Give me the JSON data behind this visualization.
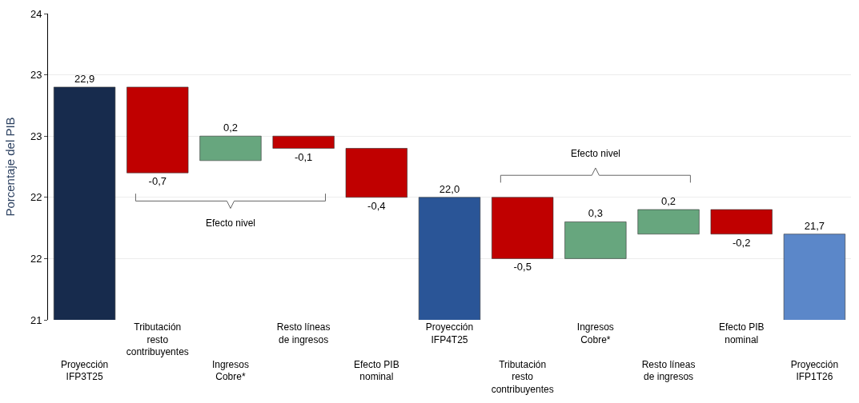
{
  "chart_data": {
    "type": "bar",
    "ylabel": "Porcentaje del PIB",
    "categories": [
      "Proyección IFP3T25",
      "Tributación resto contribuyentes",
      "Ingresos Cobre*",
      "Resto líneas de ingresos",
      "Efecto PIB nominal",
      "Proyección IFP4T25",
      "Tributación resto contribuyentes",
      "Ingresos Cobre*",
      "Resto líneas de ingresos",
      "Efecto PIB nominal",
      "Proyección IFP1T26"
    ],
    "values": [
      22.9,
      -0.7,
      0.2,
      -0.1,
      -0.4,
      22.0,
      -0.5,
      0.3,
      0.2,
      -0.2,
      21.7
    ],
    "base": [
      null,
      22.9,
      22.3,
      22.5,
      22.4,
      null,
      22.0,
      21.5,
      21.7,
      21.9,
      null
    ],
    "colors": [
      "#172b4d",
      "#c00000",
      "#67a67e",
      "#c00000",
      "#c00000",
      "#2a5597",
      "#c00000",
      "#67a67e",
      "#67a67e",
      "#c00000",
      "#5b87c9"
    ],
    "value_labels": [
      "22,9",
      "-0,7",
      "0,2",
      "-0,1",
      "-0,4",
      "22,0",
      "-0,5",
      "0,3",
      "0,2",
      "-0,2",
      "21,7"
    ],
    "ylim": [
      21,
      23.5
    ],
    "yticks": [
      21,
      {
        "value": 21.5,
        "label": "22"
      },
      22,
      {
        "value": 22.5,
        "label": "23"
      },
      23,
      {
        "value": 23.5,
        "label": "24"
      }
    ],
    "grid": "y",
    "legend": false,
    "annotations": [
      "Efecto nivel",
      "Efecto nivel"
    ]
  }
}
